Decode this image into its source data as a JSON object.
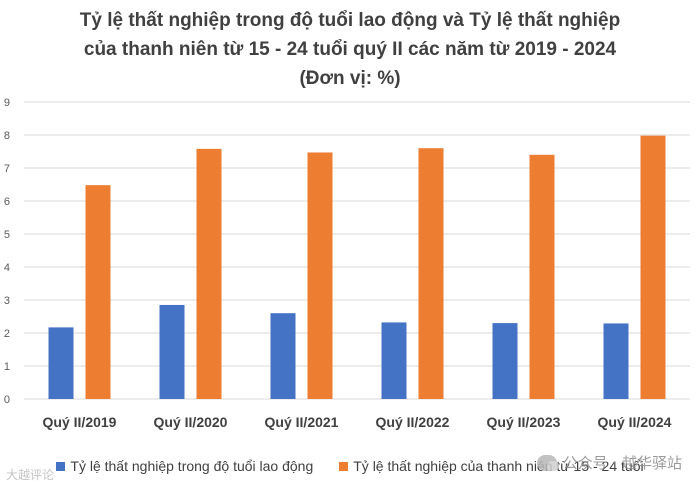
{
  "title": {
    "line1": "Tỷ lệ thất nghiệp trong độ tuổi lao động và Tỷ lệ thất nghiệp",
    "line2": "của thanh niên từ 15 - 24 tuổi quý II các năm từ 2019 - 2024",
    "line3": "(Đơn vị: %)"
  },
  "watermark": {
    "right_text": "公众号 · 越华驿站",
    "left_text": "大越评论"
  },
  "colors": {
    "series1": "#4472c4",
    "series2": "#ed7d31",
    "grid": "#d9d9d9",
    "text": "#404040"
  },
  "chart_data": {
    "type": "bar",
    "categories": [
      "Quý II/2019",
      "Quý II/2020",
      "Quý II/2021",
      "Quý II/2022",
      "Quý II/2023",
      "Quý II/2024"
    ],
    "series": [
      {
        "name": "Tỷ lệ thất nghiệp trong độ tuổi lao động",
        "values": [
          2.17,
          2.85,
          2.6,
          2.32,
          2.3,
          2.29
        ]
      },
      {
        "name": "Tỷ lệ thất nghiệp của thanh niên từ 15 - 24 tuổi",
        "values": [
          6.48,
          7.58,
          7.47,
          7.6,
          7.4,
          7.98
        ]
      }
    ],
    "ylim": [
      0,
      9
    ],
    "yticks": [
      "0",
      "1",
      "2",
      "3",
      "4",
      "5",
      "6",
      "7",
      "8",
      "9"
    ],
    "grid": true,
    "legend_position": "bottom"
  }
}
